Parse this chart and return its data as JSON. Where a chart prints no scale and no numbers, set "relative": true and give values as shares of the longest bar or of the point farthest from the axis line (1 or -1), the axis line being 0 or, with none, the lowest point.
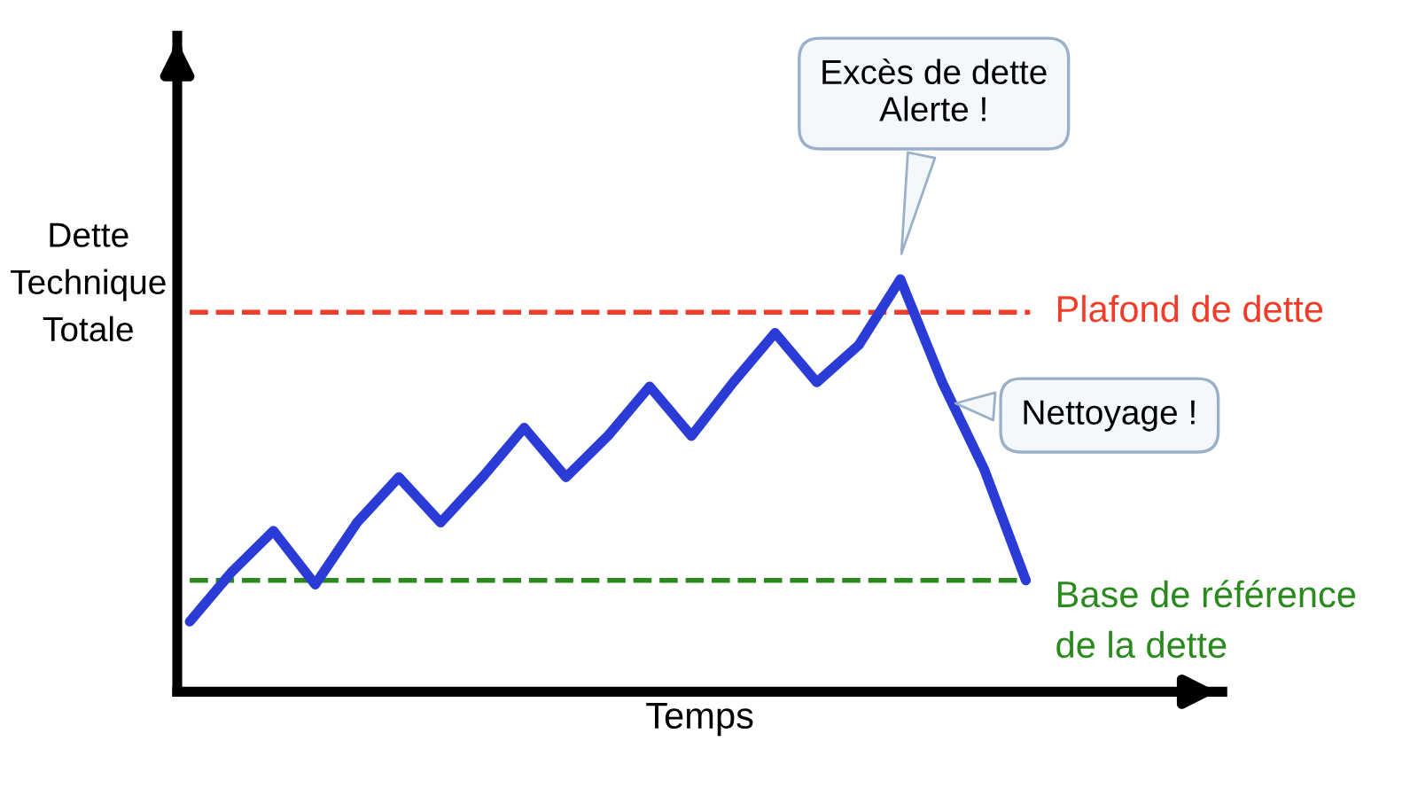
{
  "chart_data": {
    "type": "line",
    "relative": true,
    "xlabel": "Temps",
    "ylabel": "Dette\nTechnique\nTotale",
    "categories": [
      null,
      null,
      null,
      null,
      null,
      null,
      null,
      null,
      null,
      null,
      null,
      null,
      null,
      null,
      null,
      null,
      null,
      null,
      null,
      null,
      null
    ],
    "series": [
      {
        "color": "#2a3bd6",
        "values": [
          0.17,
          0.29,
          0.39,
          0.26,
          0.41,
          0.52,
          0.41,
          0.52,
          0.64,
          0.52,
          0.62,
          0.74,
          0.62,
          0.75,
          0.87,
          0.75,
          0.84,
          1.0,
          0.75,
          0.54,
          0.27
        ]
      }
    ],
    "ref_lines": [
      {
        "axis": "y",
        "value": 0.92,
        "label": "Plafond de dette",
        "color": "#f03c28",
        "line_style": "dashed"
      },
      {
        "axis": "y",
        "value": 0.27,
        "label": "Base de référence\nde la dette",
        "color": "#2a8a1e",
        "line_style": "dashed"
      }
    ],
    "annotations": [
      "Excès de dette\nAlerte !",
      "Nettoyage !"
    ],
    "marker": "none",
    "line_style": "solid"
  }
}
